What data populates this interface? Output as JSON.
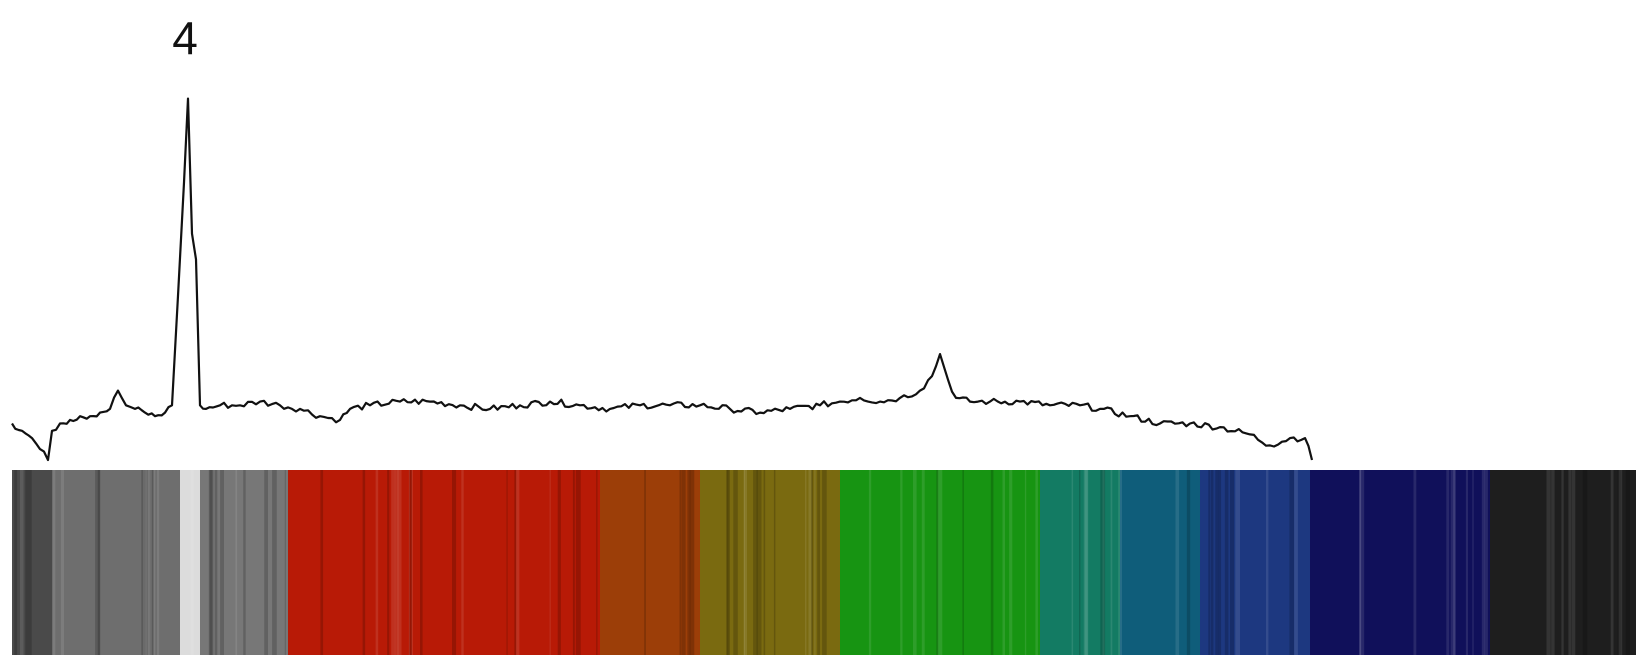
{
  "chart_data": {
    "type": "line",
    "title": "",
    "xlabel": "",
    "ylabel": "",
    "grid": false,
    "legend": "none",
    "xlim": [
      0,
      1636
    ],
    "ylim": [
      0,
      1
    ],
    "series": [
      {
        "values_xy": [
          [
            12,
            0.1
          ],
          [
            22,
            0.08
          ],
          [
            32,
            0.06
          ],
          [
            40,
            0.03
          ],
          [
            48,
            0.0
          ],
          [
            52,
            0.08
          ],
          [
            60,
            0.1
          ],
          [
            70,
            0.11
          ],
          [
            80,
            0.12
          ],
          [
            90,
            0.12
          ],
          [
            100,
            0.13
          ],
          [
            110,
            0.14
          ],
          [
            118,
            0.19
          ],
          [
            126,
            0.15
          ],
          [
            135,
            0.14
          ],
          [
            145,
            0.13
          ],
          [
            155,
            0.12
          ],
          [
            165,
            0.13
          ],
          [
            172,
            0.15
          ],
          [
            178,
            0.45
          ],
          [
            184,
            0.76
          ],
          [
            188,
            0.99
          ],
          [
            192,
            0.62
          ],
          [
            196,
            0.55
          ],
          [
            200,
            0.15
          ],
          [
            206,
            0.14
          ],
          [
            220,
            0.15
          ],
          [
            240,
            0.15
          ],
          [
            260,
            0.16
          ],
          [
            280,
            0.15
          ],
          [
            300,
            0.14
          ],
          [
            320,
            0.12
          ],
          [
            340,
            0.11
          ],
          [
            350,
            0.14
          ],
          [
            370,
            0.15
          ],
          [
            400,
            0.16
          ],
          [
            430,
            0.16
          ],
          [
            460,
            0.15
          ],
          [
            490,
            0.14
          ],
          [
            520,
            0.15
          ],
          [
            550,
            0.16
          ],
          [
            580,
            0.15
          ],
          [
            610,
            0.14
          ],
          [
            640,
            0.15
          ],
          [
            670,
            0.15
          ],
          [
            700,
            0.15
          ],
          [
            730,
            0.14
          ],
          [
            760,
            0.13
          ],
          [
            790,
            0.14
          ],
          [
            820,
            0.15
          ],
          [
            840,
            0.16
          ],
          [
            860,
            0.17
          ],
          [
            880,
            0.16
          ],
          [
            900,
            0.17
          ],
          [
            920,
            0.19
          ],
          [
            932,
            0.23
          ],
          [
            940,
            0.29
          ],
          [
            948,
            0.22
          ],
          [
            956,
            0.17
          ],
          [
            970,
            0.16
          ],
          [
            990,
            0.16
          ],
          [
            1020,
            0.16
          ],
          [
            1050,
            0.15
          ],
          [
            1080,
            0.15
          ],
          [
            1100,
            0.14
          ],
          [
            1130,
            0.12
          ],
          [
            1160,
            0.1
          ],
          [
            1190,
            0.1
          ],
          [
            1220,
            0.09
          ],
          [
            1250,
            0.07
          ],
          [
            1270,
            0.04
          ],
          [
            1290,
            0.06
          ],
          [
            1305,
            0.06
          ],
          [
            1312,
            0.0
          ]
        ]
      }
    ],
    "annotations": [
      {
        "text": "4",
        "at_x": 185
      }
    ]
  },
  "spectrum_bands": [
    {
      "x0": 12,
      "x1": 52,
      "color": "#4a4a4a"
    },
    {
      "x0": 52,
      "x1": 180,
      "color": "#6e6e6e"
    },
    {
      "x0": 180,
      "x1": 200,
      "color": "#dcdcdc"
    },
    {
      "x0": 200,
      "x1": 288,
      "color": "#777777"
    },
    {
      "x0": 288,
      "x1": 600,
      "color": "#b81a06"
    },
    {
      "x0": 600,
      "x1": 700,
      "color": "#9c3e08"
    },
    {
      "x0": 700,
      "x1": 840,
      "color": "#7a6a10"
    },
    {
      "x0": 840,
      "x1": 1040,
      "color": "#179412"
    },
    {
      "x0": 1040,
      "x1": 1120,
      "color": "#137b63"
    },
    {
      "x0": 1120,
      "x1": 1200,
      "color": "#0f5d7a"
    },
    {
      "x0": 1200,
      "x1": 1310,
      "color": "#1d3880"
    },
    {
      "x0": 1310,
      "x1": 1490,
      "color": "#10105a"
    },
    {
      "x0": 1490,
      "x1": 1636,
      "color": "#1e1e1e"
    }
  ],
  "colors": {
    "line": "#111111",
    "background": "#ffffff"
  }
}
